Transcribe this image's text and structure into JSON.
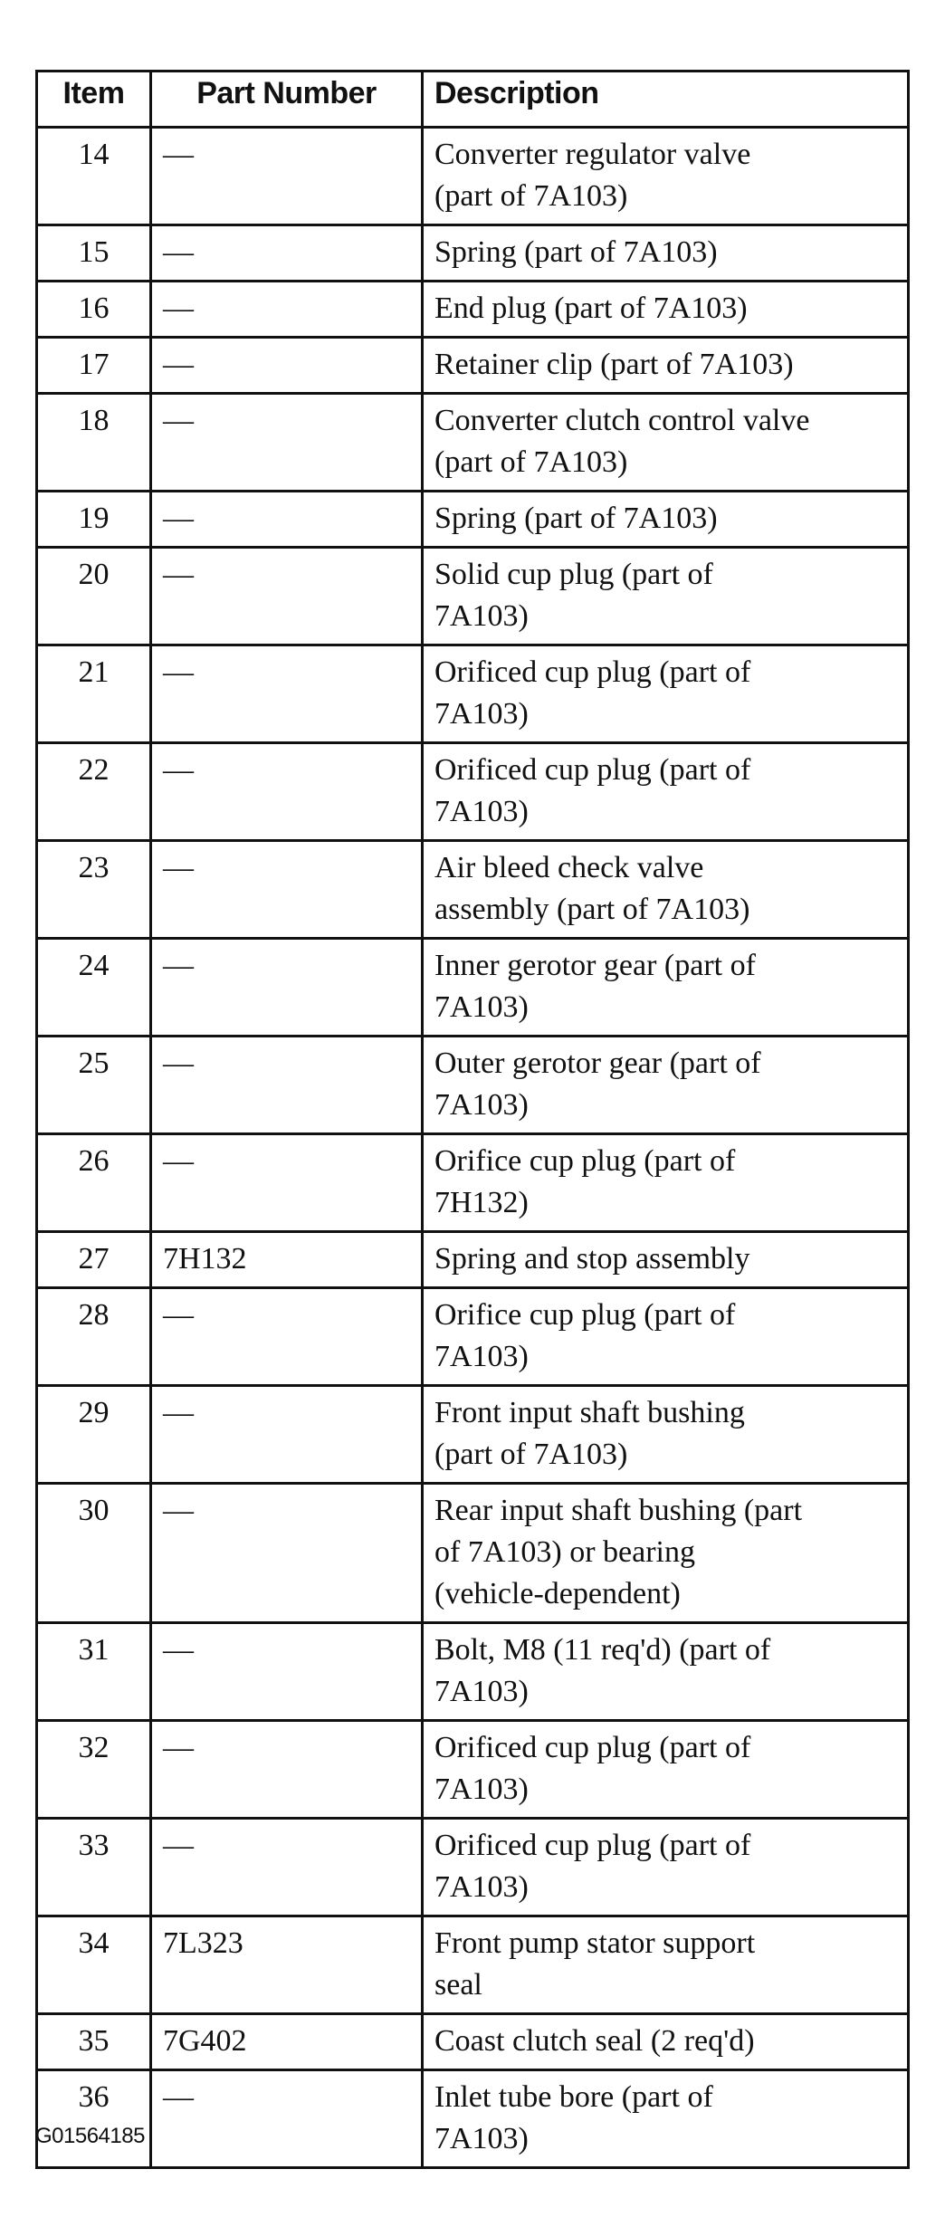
{
  "table": {
    "headers": {
      "item": "Item",
      "part_number": "Part Number",
      "description": "Description"
    },
    "rows": [
      {
        "item": "14",
        "part_number": "—",
        "description": [
          "Converter regulator valve",
          "(part of 7A103)"
        ]
      },
      {
        "item": "15",
        "part_number": "—",
        "description": [
          "Spring (part of 7A103)"
        ]
      },
      {
        "item": "16",
        "part_number": "—",
        "description": [
          "End plug (part of 7A103)"
        ]
      },
      {
        "item": "17",
        "part_number": "—",
        "description": [
          "Retainer clip (part of 7A103)"
        ]
      },
      {
        "item": "18",
        "part_number": "—",
        "description": [
          "Converter clutch control valve",
          "(part of 7A103)"
        ]
      },
      {
        "item": "19",
        "part_number": "—",
        "description": [
          "Spring (part of 7A103)"
        ]
      },
      {
        "item": "20",
        "part_number": "—",
        "description": [
          "Solid cup plug (part of",
          "7A103)"
        ]
      },
      {
        "item": "21",
        "part_number": "—",
        "description": [
          "Orificed cup plug (part of",
          "7A103)"
        ]
      },
      {
        "item": "22",
        "part_number": "—",
        "description": [
          "Orificed cup plug (part of",
          "7A103)"
        ]
      },
      {
        "item": "23",
        "part_number": "—",
        "description": [
          "Air bleed check valve",
          "assembly (part of 7A103)"
        ]
      },
      {
        "item": "24",
        "part_number": "—",
        "description": [
          "Inner gerotor gear (part of",
          "7A103)"
        ]
      },
      {
        "item": "25",
        "part_number": "—",
        "description": [
          "Outer gerotor gear (part of",
          "7A103)"
        ]
      },
      {
        "item": "26",
        "part_number": "—",
        "description": [
          "Orifice cup plug (part of",
          "7H132)"
        ]
      },
      {
        "item": "27",
        "part_number": "7H132",
        "description": [
          "Spring and stop assembly"
        ]
      },
      {
        "item": "28",
        "part_number": "—",
        "description": [
          "Orifice cup plug (part of",
          "7A103)"
        ]
      },
      {
        "item": "29",
        "part_number": "—",
        "description": [
          "Front input shaft bushing",
          "(part of 7A103)"
        ]
      },
      {
        "item": "30",
        "part_number": "—",
        "description": [
          "Rear input shaft bushing (part",
          "of 7A103) or bearing",
          "(vehicle-dependent)"
        ]
      },
      {
        "item": "31",
        "part_number": "—",
        "description": [
          "Bolt, M8 (11 req'd) (part of",
          "7A103)"
        ]
      },
      {
        "item": "32",
        "part_number": "—",
        "description": [
          "Orificed cup plug (part of",
          "7A103)"
        ]
      },
      {
        "item": "33",
        "part_number": "—",
        "description": [
          "Orificed cup plug (part of",
          "7A103)"
        ]
      },
      {
        "item": "34",
        "part_number": "7L323",
        "description": [
          "Front pump stator support",
          "seal"
        ]
      },
      {
        "item": "35",
        "part_number": "7G402",
        "description": [
          "Coast clutch seal (2 req'd)"
        ]
      },
      {
        "item": "36",
        "part_number": "—",
        "description": [
          "Inlet tube bore (part of",
          "7A103)"
        ]
      }
    ]
  },
  "footer": {
    "figure_id": "G01564185"
  }
}
